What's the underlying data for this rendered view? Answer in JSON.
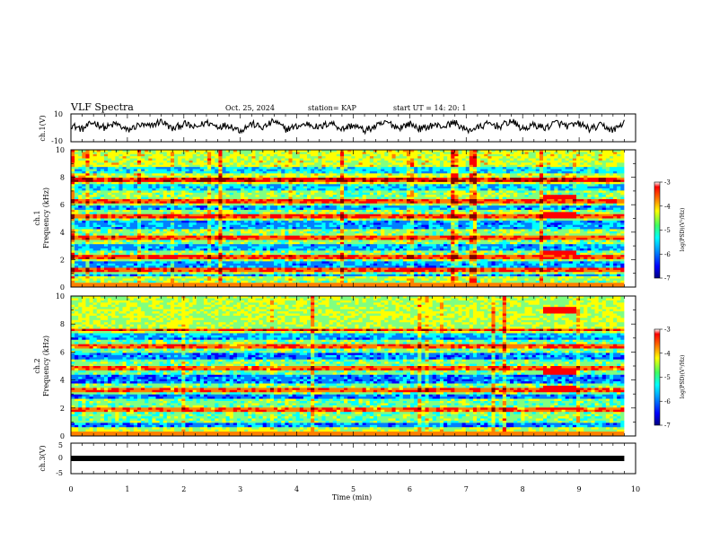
{
  "header": {
    "title": "VLF Spectra",
    "date": "Oct. 25, 2024",
    "station": "station= KAP",
    "start": "start  UT  =   14: 20: 1"
  },
  "chart_data": [
    {
      "type": "line",
      "panel": "ch1-waveform",
      "ylabel": "ch.1(V)",
      "ylim": [
        -10,
        10
      ],
      "yticks": [
        "10",
        "-10"
      ],
      "xlim": [
        0,
        10
      ],
      "series": [
        {
          "values": [
            4,
            1,
            6,
            2,
            5,
            0,
            4,
            3,
            7,
            1,
            5,
            2,
            6,
            3,
            4,
            0,
            5,
            2,
            7,
            1,
            3,
            5,
            2,
            6,
            1,
            4,
            0,
            3,
            6,
            2,
            5,
            1,
            4,
            3,
            6,
            0,
            2,
            5,
            3,
            7,
            1,
            4,
            2,
            6,
            3,
            5,
            1,
            4,
            0,
            6
          ]
        }
      ],
      "color": "#000000"
    },
    {
      "type": "heatmap",
      "panel": "ch1-spectrogram",
      "ylabel_line1": "ch.1",
      "ylabel_line2": "Frequency (kHz)",
      "ylim": [
        0,
        10
      ],
      "yticks": [
        "10",
        "8",
        "6",
        "4",
        "2",
        "0"
      ],
      "xlim": [
        0,
        10
      ],
      "quiet_bands_khz": [
        [
          0.5,
          1.0
        ],
        [
          1.4,
          1.8
        ],
        [
          2.6,
          3.1
        ],
        [
          4.2,
          4.9
        ],
        [
          5.6,
          6.0
        ],
        [
          7.0,
          7.5
        ],
        [
          8.3,
          8.7
        ]
      ],
      "hot_lines_khz": [
        0.6,
        1.2,
        2.2,
        3.6,
        5.2,
        6.3,
        7.8
      ],
      "burst_minutes": [
        8.3,
        8.9
      ],
      "burst_bands_khz": [
        [
          5.0,
          5.5
        ],
        [
          6.4,
          6.7
        ],
        [
          2.3,
          2.6
        ]
      ]
    },
    {
      "type": "heatmap",
      "panel": "ch2-spectrogram",
      "ylabel_line1": "ch.2",
      "ylabel_line2": "Frequency (kHz)",
      "ylim": [
        0,
        10
      ],
      "yticks": [
        "10",
        "8",
        "6",
        "4",
        "2",
        "0"
      ],
      "xlim": [
        0,
        10
      ],
      "quiet_bands_khz": [
        [
          0.3,
          0.9
        ],
        [
          2.6,
          3.0
        ],
        [
          3.8,
          4.4
        ],
        [
          5.4,
          6.0
        ],
        [
          6.8,
          7.4
        ]
      ],
      "hot_lines_khz": [
        0.5,
        1.9,
        3.3,
        4.8,
        6.4,
        7.6
      ],
      "burst_minutes": [
        8.3,
        8.9
      ],
      "burst_bands_khz": [
        [
          4.4,
          4.8
        ],
        [
          8.8,
          9.2
        ],
        [
          3.2,
          3.6
        ],
        [
          1.8,
          2.1
        ]
      ]
    },
    {
      "type": "line",
      "panel": "ch3-waveform",
      "ylabel": "ch.3(V)",
      "ylim": [
        -5,
        5
      ],
      "yticks": [
        "5",
        "0",
        "-5"
      ],
      "xlim": [
        0,
        9.8
      ],
      "level": 0,
      "xlabel": "Time  (min)",
      "xticks": [
        "0",
        "1",
        "2",
        "3",
        "4",
        "5",
        "6",
        "7",
        "8",
        "9",
        "10"
      ]
    }
  ],
  "colorbars": [
    {
      "label": "log(PSD)(V²/Hz)",
      "ticks": [
        "-3",
        "-4",
        "-5",
        "-6",
        "-7"
      ],
      "range": [
        -7,
        -3
      ]
    },
    {
      "label": "log(PSD)(V²/Hz)",
      "ticks": [
        "-3",
        "-4",
        "-5",
        "-6",
        "-7"
      ],
      "range": [
        -7,
        -3
      ]
    }
  ],
  "colors": {
    "jet": [
      "#00008f",
      "#0000ff",
      "#0080ff",
      "#00ffff",
      "#80ff80",
      "#ffff00",
      "#ff8000",
      "#ff0000",
      "#800000"
    ]
  }
}
